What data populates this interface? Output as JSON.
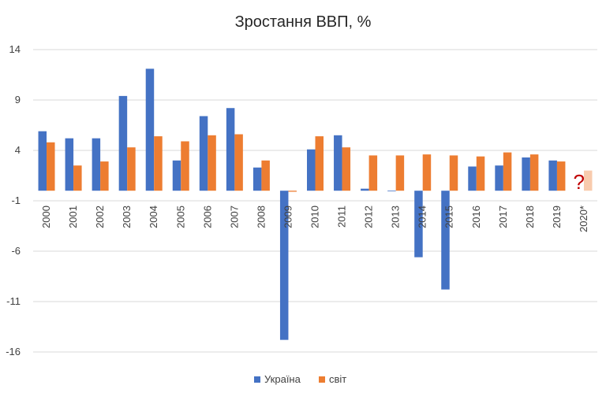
{
  "chart_data": {
    "type": "bar",
    "title": "Зростання ВВП, %",
    "categories": [
      "2000",
      "2001",
      "2002",
      "2003",
      "2004",
      "2005",
      "2006",
      "2007",
      "2008",
      "2009",
      "2010",
      "2011",
      "2012",
      "2013",
      "2014",
      "2015",
      "2016",
      "2017",
      "2018",
      "2019",
      "2020*"
    ],
    "series": [
      {
        "name": "Україна",
        "color": "#4472c4",
        "values": [
          5.9,
          5.2,
          5.2,
          9.4,
          12.1,
          3.0,
          7.4,
          8.2,
          2.3,
          -14.8,
          4.1,
          5.5,
          0.2,
          0.0,
          -6.6,
          -9.8,
          2.4,
          2.5,
          3.3,
          3.0,
          null
        ]
      },
      {
        "name": "світ",
        "color": "#ed7d31",
        "values": [
          4.8,
          2.5,
          2.9,
          4.3,
          5.4,
          4.9,
          5.5,
          5.6,
          3.0,
          -0.1,
          5.4,
          4.3,
          3.5,
          3.5,
          3.6,
          3.5,
          3.4,
          3.8,
          3.6,
          2.9,
          2.0
        ]
      }
    ],
    "projection_color": "#f8cbad",
    "annotations": [
      {
        "text": "?",
        "category": "2020*",
        "color": "#c00000"
      }
    ],
    "ylim": [
      -16,
      14
    ],
    "yticks": [
      14,
      9,
      4,
      -1,
      -6,
      -11,
      -16
    ],
    "grid": true,
    "legend": "bottom-center"
  }
}
